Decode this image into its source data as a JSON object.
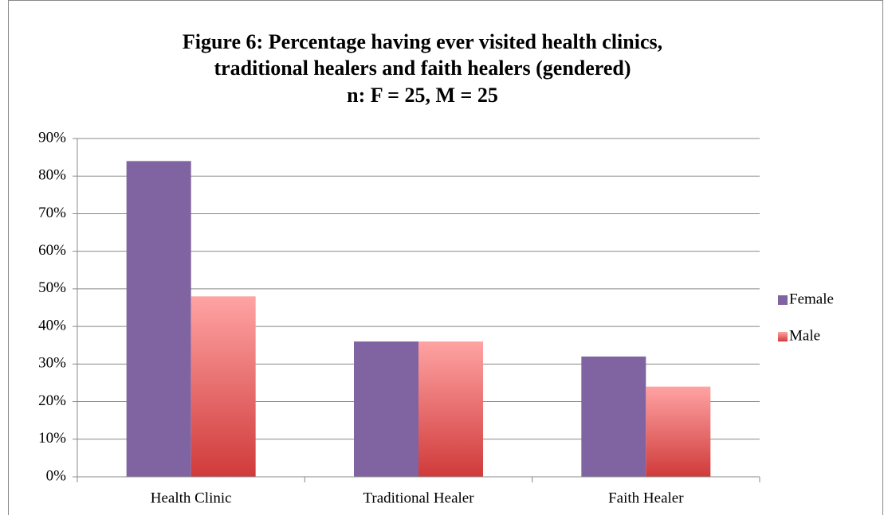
{
  "chart_data": {
    "type": "bar",
    "title": [
      "Figure 6: Percentage having ever visited health clinics,",
      "traditional healers and faith healers (gendered)"
    ],
    "subtitle": "n: F = 25, M = 25",
    "categories": [
      "Health Clinic",
      "Traditional Healer",
      "Faith Healer"
    ],
    "series": [
      {
        "name": "Female",
        "color": "#8064a2",
        "values": [
          84,
          36,
          32
        ]
      },
      {
        "name": "Male",
        "color": "#f79b9b",
        "gradient": [
          "#ffa3a3",
          "#d03a3a"
        ],
        "values": [
          48,
          36,
          24
        ]
      }
    ],
    "ylim": [
      0,
      90
    ],
    "yticks": [
      {
        "value": 0,
        "label": "0%"
      },
      {
        "value": 10,
        "label": "10%"
      },
      {
        "value": 20,
        "label": "20%"
      },
      {
        "value": 30,
        "label": "30%"
      },
      {
        "value": 40,
        "label": "40%"
      },
      {
        "value": 50,
        "label": "50%"
      },
      {
        "value": 60,
        "label": "60%"
      },
      {
        "value": 70,
        "label": "70%"
      },
      {
        "value": 80,
        "label": "80%"
      },
      {
        "value": 90,
        "label": "90%"
      }
    ],
    "grid": true,
    "legend": "right"
  }
}
